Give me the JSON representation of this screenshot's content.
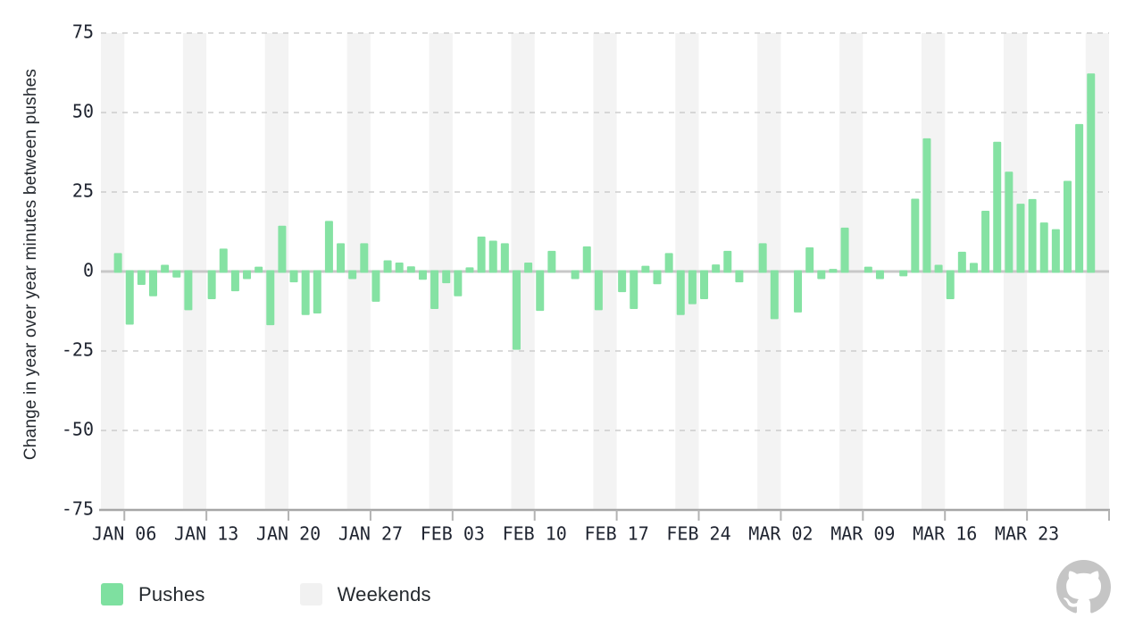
{
  "chart_data": {
    "type": "bar",
    "title": "",
    "ylabel": "Change in year over year minutes between pushes",
    "xlabel": "",
    "ylim": [
      -75,
      75
    ],
    "yticks": [
      75,
      50,
      25,
      0,
      -25,
      -50,
      -75
    ],
    "ytick_labels": [
      "75",
      "50",
      "25",
      "0",
      "-25",
      "-50",
      "-75"
    ],
    "grid": "dashed horizontal lines at 75, 50, 25, -25, -50; solid line at 0; solid axis at -75",
    "legend_position": "bottom-left",
    "series_name": "Pushes",
    "band_name": "Weekends",
    "categories": [
      "JAN 04",
      "JAN 05",
      "JAN 06",
      "JAN 07",
      "JAN 08",
      "JAN 09",
      "JAN 10",
      "JAN 11",
      "JAN 12",
      "JAN 13",
      "JAN 14",
      "JAN 15",
      "JAN 16",
      "JAN 17",
      "JAN 18",
      "JAN 19",
      "JAN 20",
      "JAN 21",
      "JAN 22",
      "JAN 23",
      "JAN 24",
      "JAN 25",
      "JAN 26",
      "JAN 27",
      "JAN 28",
      "JAN 29",
      "JAN 30",
      "JAN 31",
      "FEB 01",
      "FEB 02",
      "FEB 03",
      "FEB 04",
      "FEB 05",
      "FEB 06",
      "FEB 07",
      "FEB 08",
      "FEB 09",
      "FEB 10",
      "FEB 11",
      "FEB 12",
      "FEB 13",
      "FEB 14",
      "FEB 15",
      "FEB 16",
      "FEB 17",
      "FEB 18",
      "FEB 19",
      "FEB 20",
      "FEB 21",
      "FEB 22",
      "FEB 23",
      "FEB 24",
      "FEB 25",
      "FEB 26",
      "FEB 27",
      "FEB 28",
      "FEB 29",
      "MAR 01",
      "MAR 02",
      "MAR 03",
      "MAR 04",
      "MAR 05",
      "MAR 06",
      "MAR 07",
      "MAR 08",
      "MAR 09",
      "MAR 10",
      "MAR 11",
      "MAR 12",
      "MAR 13",
      "MAR 14",
      "MAR 15",
      "MAR 16",
      "MAR 17",
      "MAR 18",
      "MAR 19",
      "MAR 20",
      "MAR 21",
      "MAR 22",
      "MAR 23",
      "MAR 24",
      "MAR 25",
      "MAR 26",
      "MAR 27",
      "MAR 28",
      "MAR 29"
    ],
    "values": [
      0,
      5.8,
      -16.7,
      -4.2,
      -7.8,
      2.1,
      -1.9,
      -12.2,
      0,
      -8.7,
      7.2,
      -6.2,
      -2.4,
      1.5,
      -16.9,
      14.4,
      -3.4,
      -13.7,
      -13.2,
      15.9,
      8.9,
      -2.4,
      8.9,
      -9.5,
      3.5,
      2.8,
      1.6,
      -2.6,
      -11.8,
      -3.7,
      -7.8,
      1.3,
      11.0,
      9.7,
      8.9,
      -24.6,
      2.8,
      -12.4,
      6.5,
      0,
      -2.4,
      7.9,
      -12.2,
      0,
      -6.5,
      -11.8,
      1.8,
      -4.0,
      5.8,
      -13.7,
      -10.3,
      -8.7,
      2.2,
      6.5,
      -3.4,
      0,
      8.9,
      -15.0,
      0,
      -12.9,
      7.6,
      -2.4,
      0.8,
      13.8,
      0,
      1.5,
      -2.4,
      0,
      -1.5,
      22.9,
      41.9,
      2.1,
      -8.7,
      6.2,
      2.7,
      19.1,
      40.8,
      31.4,
      21.3,
      22.8,
      15.4,
      13.3,
      28.5,
      46.4,
      62.3,
      0
    ],
    "weekend_start_indices": [
      0,
      7,
      14,
      21,
      28,
      35,
      42,
      49,
      56,
      63,
      70,
      77,
      84
    ],
    "x_tick_indices": [
      2,
      9,
      16,
      23,
      30,
      37,
      44,
      51,
      58,
      65,
      72,
      79,
      86
    ],
    "x_tick_labels": [
      "JAN 06",
      "JAN 13",
      "JAN 20",
      "JAN 27",
      "FEB 03",
      "FEB 10",
      "FEB 17",
      "FEB 24",
      "MAR 02",
      "MAR 09",
      "MAR 16",
      "MAR 23",
      ""
    ]
  },
  "legend": {
    "items": [
      {
        "label": "Pushes",
        "color": "#7ee0a0"
      },
      {
        "label": "Weekends",
        "color": "#f1f1f1"
      }
    ]
  },
  "branding": {
    "logo": "github-octocat-icon",
    "color": "#c5c5c5"
  },
  "colors": {
    "bar": "#85e2a3",
    "weekend_band": "#f3f3f3",
    "zero_line": "#c8c8c8",
    "gridline": "#cdcdcd",
    "axis_line": "#a6a6a6",
    "tick_mark": "#b3b3b3",
    "tick_text": "#1f2430",
    "axis_title_text": "#24292f"
  }
}
